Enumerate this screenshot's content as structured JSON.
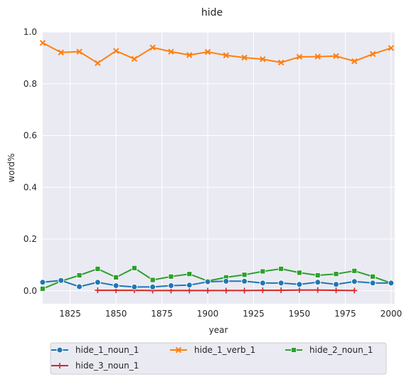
{
  "chart_data": {
    "type": "line",
    "title": "hide",
    "xlabel": "year",
    "ylabel": "word%",
    "xlim": [
      1810,
      2002
    ],
    "ylim": [
      -0.05,
      1.0
    ],
    "xticks": [
      1825,
      1850,
      1875,
      1900,
      1925,
      1950,
      1975,
      2000
    ],
    "yticks": [
      0.0,
      0.2,
      0.4,
      0.6,
      0.8,
      1.0
    ],
    "grid": true,
    "legend_position": "bottom",
    "x": [
      1810,
      1820,
      1830,
      1840,
      1850,
      1860,
      1870,
      1880,
      1890,
      1900,
      1910,
      1920,
      1930,
      1940,
      1950,
      1960,
      1970,
      1980,
      1990,
      2000
    ],
    "series": [
      {
        "name": "hide_1_noun_1",
        "color": "#1f77b4",
        "marker": "circle",
        "x": [
          1810,
          1820,
          1830,
          1840,
          1850,
          1860,
          1870,
          1880,
          1890,
          1900,
          1910,
          1920,
          1930,
          1940,
          1950,
          1960,
          1970,
          1980,
          1990,
          2000
        ],
        "values": [
          0.033,
          0.04,
          0.016,
          0.033,
          0.02,
          0.015,
          0.015,
          0.02,
          0.022,
          0.035,
          0.037,
          0.037,
          0.03,
          0.03,
          0.025,
          0.033,
          0.025,
          0.036,
          0.03,
          0.03
        ]
      },
      {
        "name": "hide_1_verb_1",
        "color": "#ff7f0e",
        "marker": "x",
        "x": [
          1810,
          1820,
          1830,
          1840,
          1850,
          1860,
          1870,
          1880,
          1890,
          1900,
          1910,
          1920,
          1930,
          1940,
          1950,
          1960,
          1970,
          1980,
          1990,
          2000
        ],
        "values": [
          0.958,
          0.921,
          0.924,
          0.88,
          0.927,
          0.896,
          0.94,
          0.924,
          0.911,
          0.923,
          0.91,
          0.901,
          0.895,
          0.882,
          0.904,
          0.905,
          0.907,
          0.887,
          0.915,
          0.938
        ]
      },
      {
        "name": "hide_2_noun_1",
        "color": "#2ca02c",
        "marker": "square",
        "x": [
          1810,
          1820,
          1830,
          1840,
          1850,
          1860,
          1870,
          1880,
          1890,
          1900,
          1910,
          1920,
          1930,
          1940,
          1950,
          1960,
          1970,
          1980,
          1990,
          2000
        ],
        "values": [
          0.008,
          0.037,
          0.06,
          0.085,
          0.052,
          0.088,
          0.042,
          0.055,
          0.065,
          0.038,
          0.052,
          0.062,
          0.075,
          0.085,
          0.07,
          0.06,
          0.065,
          0.077,
          0.055,
          0.03
        ]
      },
      {
        "name": "hide_3_noun_1",
        "color": "#d62728",
        "marker": "plus",
        "x": [
          1840,
          1850,
          1860,
          1870,
          1880,
          1890,
          1900,
          1910,
          1920,
          1930,
          1940,
          1950,
          1960,
          1970,
          1980
        ],
        "values": [
          0.002,
          0.002,
          0.002,
          0.001,
          0.001,
          0.001,
          0.001,
          0.001,
          0.001,
          0.002,
          0.002,
          0.003,
          0.003,
          0.002,
          0.001
        ]
      }
    ]
  }
}
